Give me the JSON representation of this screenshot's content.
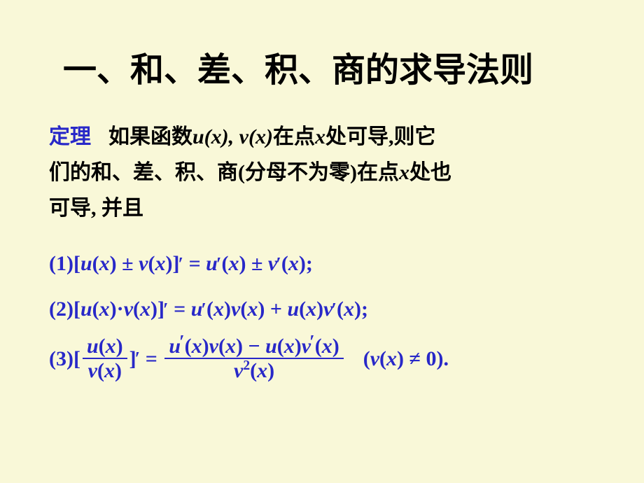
{
  "colors": {
    "background": "#f9f8d8",
    "text": "#000000",
    "accent": "#2828c8"
  },
  "title": "一、和、差、积、商的求导法则",
  "theorem": {
    "label": "定理",
    "line1_a": "如果函数",
    "line1_b": "在点",
    "line1_c": "处可导",
    "line1_d": "则它",
    "func1": "u(x),",
    "func2": "v(x)",
    "var_x": "x",
    "sep1": ",",
    "line2_a": "们的和、差、积、商",
    "line2_b": "分母不为零",
    "line2_c": "在点",
    "line2_d": "处也",
    "paren_l": "(",
    "paren_r": ")",
    "line3": "可导, 并且"
  },
  "formulas": {
    "f1": {
      "num": "(1)",
      "lhs_l": "[",
      "u": "u",
      "v": "v",
      "x": "x",
      "pm": "±",
      "lp": "(",
      "rp": ")",
      "rhs_close": "]",
      "eq": "=",
      "semi": ";"
    },
    "f2": {
      "num": "(2)",
      "lhs_l": "[",
      "u": "u",
      "v": "v",
      "x": "x",
      "dot": "·",
      "plus": "+",
      "lp": "(",
      "rp": ")",
      "rhs_close": "]",
      "eq": "=",
      "semi": ";"
    },
    "f3": {
      "num": "(3)",
      "lhs_l": "[",
      "u": "u",
      "v": "v",
      "x": "x",
      "minus": "−",
      "rhs_close": "]",
      "eq": "=",
      "lp": "(",
      "rp": ")",
      "neq": "≠",
      "zero": "0",
      "dot": ".",
      "sq": "2"
    }
  }
}
